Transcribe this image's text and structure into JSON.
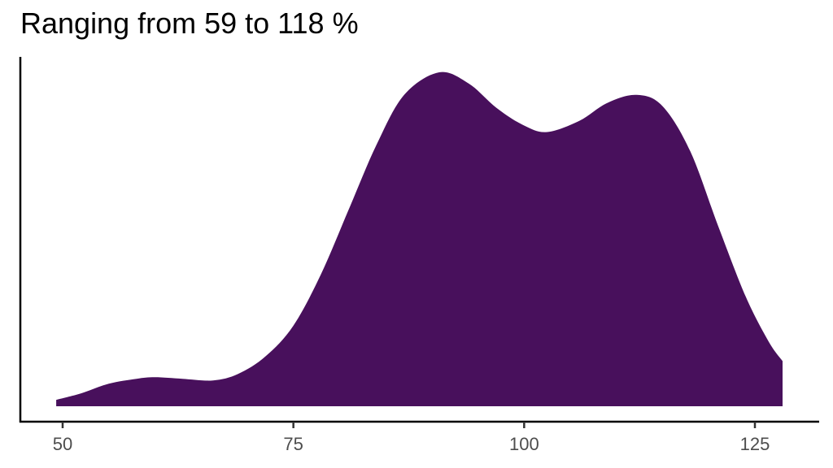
{
  "title": "Ranging from 59 to 118 %",
  "colors": {
    "fill": "#48105c",
    "axis": "#000000",
    "tick_label": "#4d4d4d"
  },
  "x_axis": {
    "ticks": [
      {
        "value": 50,
        "label": "50"
      },
      {
        "value": 75,
        "label": "75"
      },
      {
        "value": 100,
        "label": "100"
      },
      {
        "value": 125,
        "label": "125"
      }
    ]
  },
  "chart_data": {
    "type": "area",
    "subtype": "density",
    "title": "Ranging from 59 to 118 %",
    "xlabel": "",
    "ylabel": "",
    "xlim": [
      45.5,
      131.5
    ],
    "x_ticks": [
      50,
      75,
      100,
      125
    ],
    "y_ticks": [],
    "grid": false,
    "legend": null,
    "fill_color": "#48105c",
    "x_range_of_density": [
      49.3,
      128.0
    ],
    "points": [
      {
        "x": 49.3,
        "y": 0.04
      },
      {
        "x": 52.0,
        "y": 0.08
      },
      {
        "x": 55.0,
        "y": 0.14
      },
      {
        "x": 58.0,
        "y": 0.17
      },
      {
        "x": 60.0,
        "y": 0.18
      },
      {
        "x": 63.0,
        "y": 0.17
      },
      {
        "x": 66.3,
        "y": 0.16
      },
      {
        "x": 69.0,
        "y": 0.2
      },
      {
        "x": 72.0,
        "y": 0.31
      },
      {
        "x": 75.0,
        "y": 0.5
      },
      {
        "x": 78.0,
        "y": 0.82
      },
      {
        "x": 81.0,
        "y": 1.22
      },
      {
        "x": 84.0,
        "y": 1.62
      },
      {
        "x": 87.0,
        "y": 1.93
      },
      {
        "x": 90.8,
        "y": 2.07
      },
      {
        "x": 94.0,
        "y": 2.0
      },
      {
        "x": 97.0,
        "y": 1.85
      },
      {
        "x": 100.0,
        "y": 1.74
      },
      {
        "x": 102.5,
        "y": 1.7
      },
      {
        "x": 106.0,
        "y": 1.77
      },
      {
        "x": 109.0,
        "y": 1.88
      },
      {
        "x": 112.2,
        "y": 1.93
      },
      {
        "x": 115.0,
        "y": 1.86
      },
      {
        "x": 118.0,
        "y": 1.58
      },
      {
        "x": 121.0,
        "y": 1.12
      },
      {
        "x": 124.0,
        "y": 0.68
      },
      {
        "x": 126.5,
        "y": 0.4
      },
      {
        "x": 128.0,
        "y": 0.28
      }
    ],
    "annotations": []
  }
}
